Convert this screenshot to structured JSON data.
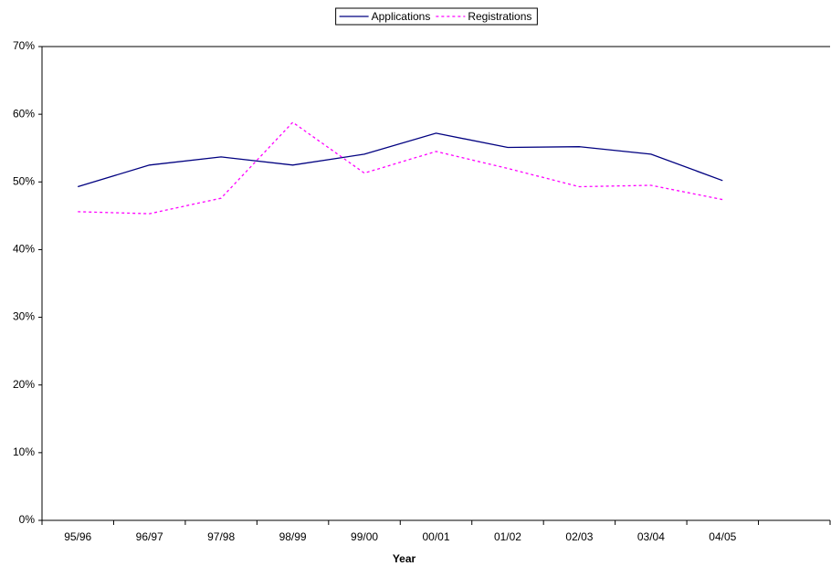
{
  "chart_data": {
    "type": "line",
    "x_label": "Year",
    "categories": [
      "95/96",
      "96/97",
      "97/98",
      "98/99",
      "99/00",
      "00/01",
      "01/02",
      "02/03",
      "03/04",
      "04/05",
      null
    ],
    "series": [
      {
        "name": "Applications",
        "color": "#000080",
        "dash": "solid",
        "values": [
          49.3,
          52.5,
          53.7,
          52.5,
          54.1,
          57.2,
          55.1,
          55.2,
          54.1,
          50.2,
          null
        ]
      },
      {
        "name": "Registrations",
        "color": "#ff00ff",
        "dash": "dotted",
        "values": [
          45.6,
          45.3,
          47.6,
          58.8,
          51.3,
          54.5,
          52.0,
          49.3,
          49.5,
          47.4,
          null
        ]
      }
    ],
    "ylim": [
      0,
      70
    ],
    "yticks": [
      {
        "value": 0,
        "label": "0%"
      },
      {
        "value": 10,
        "label": "10%"
      },
      {
        "value": 20,
        "label": "20%"
      },
      {
        "value": 30,
        "label": "30%"
      },
      {
        "value": 40,
        "label": "40%"
      },
      {
        "value": 50,
        "label": "50%"
      },
      {
        "value": 60,
        "label": "60%"
      },
      {
        "value": 70,
        "label": "70%"
      }
    ],
    "legend": "top",
    "grid": false
  }
}
